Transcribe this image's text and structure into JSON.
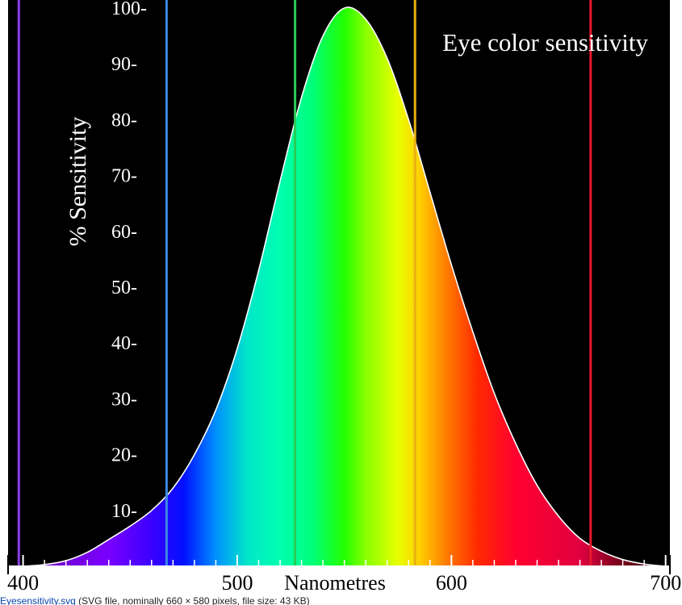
{
  "chart_data": {
    "type": "area",
    "title": "Eye color sensitivity",
    "xlabel": "Nanometres",
    "ylabel": "% Sensitivity",
    "xlim": [
      393,
      702
    ],
    "ylim": [
      0,
      100
    ],
    "x_ticks": [
      400,
      500,
      600,
      700
    ],
    "y_ticks": [
      10,
      20,
      30,
      40,
      50,
      60,
      70,
      80,
      90,
      100
    ],
    "y_tick_suffix": "-",
    "x": [
      393,
      400,
      410,
      420,
      430,
      440,
      450,
      460,
      470,
      480,
      490,
      500,
      510,
      520,
      530,
      540,
      550,
      560,
      570,
      580,
      590,
      600,
      610,
      620,
      630,
      640,
      650,
      660,
      670,
      680,
      690,
      700
    ],
    "values": [
      0,
      0,
      0.3,
      1,
      2.5,
      4.8,
      7.2,
      10,
      14,
      20,
      28,
      39,
      53,
      69,
      84,
      95,
      100,
      98,
      91,
      80,
      67,
      54,
      42,
      31,
      22,
      14.5,
      9,
      5,
      2.7,
      1.2,
      0.4,
      0
    ],
    "markers": [
      {
        "x": 398,
        "color": "#8a3ee8"
      },
      {
        "x": 467,
        "color": "#3d8ae6"
      },
      {
        "x": 527,
        "color": "#29cc55"
      },
      {
        "x": 583,
        "color": "#e8b012"
      },
      {
        "x": 665,
        "color": "#e8182c"
      }
    ],
    "spectrum": [
      {
        "x": 400,
        "color": "#6a00b0"
      },
      {
        "x": 440,
        "color": "#7a00ff"
      },
      {
        "x": 460,
        "color": "#3a00ff"
      },
      {
        "x": 475,
        "color": "#0010ff"
      },
      {
        "x": 490,
        "color": "#0090ff"
      },
      {
        "x": 505,
        "color": "#00e8c8"
      },
      {
        "x": 520,
        "color": "#00ffb0"
      },
      {
        "x": 535,
        "color": "#00ff7a"
      },
      {
        "x": 550,
        "color": "#22ff00"
      },
      {
        "x": 560,
        "color": "#88ff00"
      },
      {
        "x": 575,
        "color": "#e8ff00"
      },
      {
        "x": 585,
        "color": "#ffd000"
      },
      {
        "x": 598,
        "color": "#ff7a00"
      },
      {
        "x": 612,
        "color": "#ff2a00"
      },
      {
        "x": 630,
        "color": "#ff0030"
      },
      {
        "x": 660,
        "color": "#e00040"
      },
      {
        "x": 680,
        "color": "#700018"
      },
      {
        "x": 700,
        "color": "#300008"
      }
    ],
    "colors": {
      "background": "#000000",
      "text": "#ffffff",
      "curve": "#ffffff",
      "axis": "#ffffff",
      "axis_labels": "#000000"
    }
  },
  "caption": {
    "link_text": "Eyesensitivity.svg",
    "details": " (SVG file, nominally 660 × 580 pixels, file size: 43 KB)"
  }
}
